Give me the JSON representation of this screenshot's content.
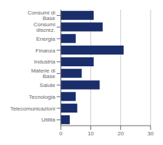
{
  "chart_data": {
    "type": "bar",
    "orientation": "horizontal",
    "categories": [
      "Consumi di Base",
      "Consumi discrez.",
      "Energia",
      "Finanza",
      "Industria",
      "Materie di Base",
      "Salute",
      "Tecnologia",
      "Telecomunicazioni",
      "Utilità"
    ],
    "values": [
      11.0,
      14.0,
      5.0,
      21.0,
      11.0,
      7.0,
      13.0,
      5.0,
      5.5,
      3.0
    ],
    "color": "#1a2e6b",
    "xlim": [
      0,
      30
    ],
    "xticks": [
      0,
      10,
      20,
      30
    ],
    "grid": true
  }
}
